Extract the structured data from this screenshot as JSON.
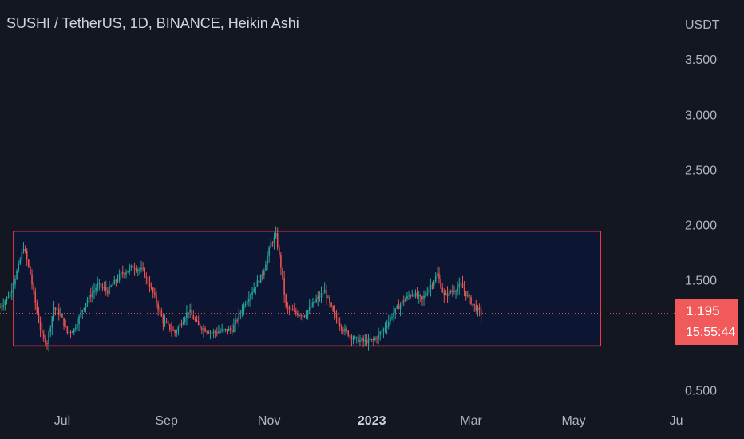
{
  "title": "SUSHI / TetherUS, 1D, BINANCE, Heikin Ashi",
  "colors": {
    "up": "#26a69a",
    "down": "#ef5350",
    "box_stroke": "#f23645",
    "box_fill": "#0c1531",
    "price_line": "#f05a5a",
    "background": "#131722"
  },
  "price_badge": {
    "price": "1.195",
    "countdown": "15:55:44"
  },
  "chart_data": {
    "type": "candlestick",
    "y_axis_unit": "USDT",
    "ylim": [
      0.36,
      3.82
    ],
    "y_ticks": [
      {
        "value": 0.5,
        "label": "0.500"
      },
      {
        "value": 1.5,
        "label": "1.500"
      },
      {
        "value": 2.0,
        "label": "2.000"
      },
      {
        "value": 2.5,
        "label": "2.500"
      },
      {
        "value": 3.0,
        "label": "3.000"
      },
      {
        "value": 3.5,
        "label": "3.500"
      }
    ],
    "x_range": [
      "2022-05-25",
      "2023-06-30"
    ],
    "x_ticks": [
      {
        "date": "2022-07-01",
        "label": "Jul",
        "bold": false
      },
      {
        "date": "2022-09-01",
        "label": "Sep",
        "bold": false
      },
      {
        "date": "2022-11-01",
        "label": "Nov",
        "bold": false
      },
      {
        "date": "2023-01-01",
        "label": "2023",
        "bold": true
      },
      {
        "date": "2023-03-01",
        "label": "Mar",
        "bold": false
      },
      {
        "date": "2023-05-01",
        "label": "May",
        "bold": false
      },
      {
        "date": "2023-07-01",
        "label": "Ju",
        "bold": false
      }
    ],
    "last_price": 1.195,
    "range_box": {
      "start": "2022-06-02",
      "end": "2023-05-17",
      "top": 1.94,
      "bottom": 0.9
    },
    "trend": [
      [
        "2022-05-25",
        1.25
      ],
      [
        "2022-05-31",
        1.38
      ],
      [
        "2022-06-05",
        1.62
      ],
      [
        "2022-06-08",
        1.8
      ],
      [
        "2022-06-12",
        1.55
      ],
      [
        "2022-06-16",
        1.2
      ],
      [
        "2022-06-19",
        0.98
      ],
      [
        "2022-06-22",
        0.93
      ],
      [
        "2022-06-26",
        1.25
      ],
      [
        "2022-06-30",
        1.18
      ],
      [
        "2022-07-04",
        1.02
      ],
      [
        "2022-07-08",
        1.05
      ],
      [
        "2022-07-15",
        1.3
      ],
      [
        "2022-07-22",
        1.45
      ],
      [
        "2022-07-28",
        1.4
      ],
      [
        "2022-08-05",
        1.55
      ],
      [
        "2022-08-12",
        1.62
      ],
      [
        "2022-08-18",
        1.58
      ],
      [
        "2022-08-24",
        1.38
      ],
      [
        "2022-08-30",
        1.12
      ],
      [
        "2022-09-06",
        1.02
      ],
      [
        "2022-09-14",
        1.22
      ],
      [
        "2022-09-20",
        1.08
      ],
      [
        "2022-09-28",
        1.02
      ],
      [
        "2022-10-05",
        1.04
      ],
      [
        "2022-10-10",
        1.05
      ],
      [
        "2022-10-18",
        1.3
      ],
      [
        "2022-10-24",
        1.45
      ],
      [
        "2022-10-28",
        1.55
      ],
      [
        "2022-11-02",
        1.82
      ],
      [
        "2022-11-05",
        1.9
      ],
      [
        "2022-11-08",
        1.62
      ],
      [
        "2022-11-11",
        1.25
      ],
      [
        "2022-11-16",
        1.2
      ],
      [
        "2022-11-22",
        1.18
      ],
      [
        "2022-11-28",
        1.3
      ],
      [
        "2022-12-04",
        1.4
      ],
      [
        "2022-12-09",
        1.2
      ],
      [
        "2022-12-15",
        1.05
      ],
      [
        "2022-12-22",
        0.96
      ],
      [
        "2022-12-28",
        0.94
      ],
      [
        "2023-01-02",
        0.95
      ],
      [
        "2023-01-08",
        1.05
      ],
      [
        "2023-01-13",
        1.18
      ],
      [
        "2023-01-19",
        1.3
      ],
      [
        "2023-01-25",
        1.38
      ],
      [
        "2023-01-31",
        1.32
      ],
      [
        "2023-02-05",
        1.45
      ],
      [
        "2023-02-09",
        1.55
      ],
      [
        "2023-02-13",
        1.35
      ],
      [
        "2023-02-18",
        1.4
      ],
      [
        "2023-02-23",
        1.45
      ],
      [
        "2023-02-28",
        1.32
      ],
      [
        "2023-03-04",
        1.24
      ],
      [
        "2023-03-07",
        1.19
      ]
    ]
  }
}
